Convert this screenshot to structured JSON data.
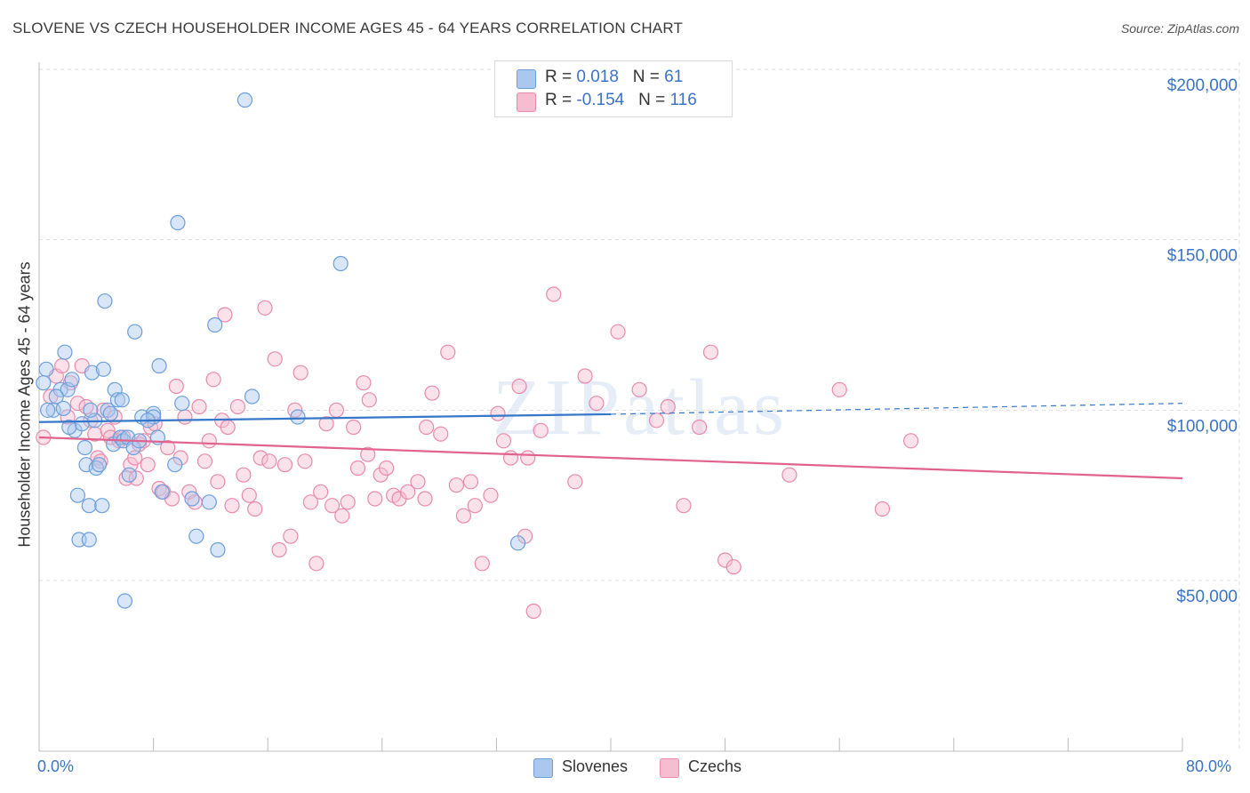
{
  "title": "SLOVENE VS CZECH HOUSEHOLDER INCOME AGES 45 - 64 YEARS CORRELATION CHART",
  "source": "Source: ZipAtlas.com",
  "watermark": "ZIPatlas",
  "legend": {
    "rows": [
      {
        "r_label": "R = ",
        "r_value": "0.018",
        "n_label": "N = ",
        "n_value": "61"
      },
      {
        "r_label": "R = ",
        "r_value": "-0.154",
        "n_label": "N = ",
        "n_value": "116"
      }
    ]
  },
  "bottom_legend": [
    "Slovenes",
    "Czechs"
  ],
  "colors": {
    "slovenes_fill": "#aac8ee",
    "slovenes_stroke": "#6c9edc",
    "slovenes_line": "#3577c9",
    "czechs_fill": "#f6bcd0",
    "czechs_stroke": "#e88aab",
    "czechs_line": "#e0628f",
    "axis_label": "#3b73c6",
    "grid": "#dddddd"
  },
  "chart_data": {
    "type": "scatter",
    "title": "SLOVENE VS CZECH HOUSEHOLDER INCOME AGES 45 - 64 YEARS CORRELATION CHART",
    "xlabel": "",
    "ylabel": "Householder Income Ages 45 - 64 years",
    "xlim": [
      0,
      80
    ],
    "ylim": [
      0,
      210000
    ],
    "x_tick_labels": [
      "0.0%",
      "80.0%"
    ],
    "y_ticks": [
      50000,
      100000,
      150000,
      200000
    ],
    "y_tick_labels": [
      "$50,000",
      "$100,000",
      "$150,000",
      "$200,000"
    ],
    "grid": "horizontal dashed",
    "series": [
      {
        "name": "Slovenes",
        "r": 0.018,
        "n": 61,
        "trend": {
          "x": [
            0,
            40
          ],
          "y": [
            96500,
            98800
          ],
          "dashed_to_x": 80,
          "dashed_to_y": 102000
        },
        "points": [
          [
            0.5,
            112000
          ],
          [
            1.0,
            100000
          ],
          [
            1.5,
            106000
          ],
          [
            1.7,
            100500
          ],
          [
            1.8,
            117000
          ],
          [
            2.0,
            106000
          ],
          [
            2.3,
            109000
          ],
          [
            2.5,
            94000
          ],
          [
            2.7,
            75000
          ],
          [
            2.8,
            62000
          ],
          [
            3.0,
            96000
          ],
          [
            3.2,
            89000
          ],
          [
            3.3,
            84000
          ],
          [
            3.5,
            72000
          ],
          [
            3.5,
            62000
          ],
          [
            3.7,
            111000
          ],
          [
            3.9,
            97000
          ],
          [
            4.0,
            83000
          ],
          [
            4.2,
            84000
          ],
          [
            4.4,
            72000
          ],
          [
            4.5,
            112000
          ],
          [
            4.6,
            132000
          ],
          [
            4.8,
            100000
          ],
          [
            5.0,
            99000
          ],
          [
            5.2,
            90000
          ],
          [
            5.3,
            106000
          ],
          [
            5.5,
            103000
          ],
          [
            5.7,
            92000
          ],
          [
            5.9,
            91000
          ],
          [
            6.0,
            44000
          ],
          [
            6.2,
            92000
          ],
          [
            6.3,
            81000
          ],
          [
            6.6,
            89000
          ],
          [
            6.7,
            123000
          ],
          [
            7.0,
            91000
          ],
          [
            7.2,
            98000
          ],
          [
            8.0,
            99000
          ],
          [
            8.0,
            98000
          ],
          [
            8.3,
            92000
          ],
          [
            8.4,
            113000
          ],
          [
            8.6,
            76000
          ],
          [
            9.5,
            84000
          ],
          [
            9.7,
            155000
          ],
          [
            10.0,
            102000
          ],
          [
            10.7,
            74000
          ],
          [
            11.0,
            63000
          ],
          [
            11.9,
            73000
          ],
          [
            12.3,
            125000
          ],
          [
            12.5,
            59000
          ],
          [
            14.4,
            191000
          ],
          [
            14.9,
            104000
          ],
          [
            18.1,
            98000
          ],
          [
            21.1,
            143000
          ],
          [
            33.5,
            61000
          ],
          [
            0.3,
            108000
          ],
          [
            0.6,
            100000
          ],
          [
            1.2,
            104000
          ],
          [
            2.1,
            95000
          ],
          [
            3.6,
            100000
          ],
          [
            5.8,
            103000
          ],
          [
            7.6,
            97000
          ]
        ]
      },
      {
        "name": "Czechs",
        "r": -0.154,
        "n": 116,
        "trend": {
          "x": [
            0,
            80
          ],
          "y": [
            92000,
            80000
          ]
        },
        "points": [
          [
            0.3,
            92000
          ],
          [
            0.8,
            104000
          ],
          [
            1.2,
            110000
          ],
          [
            1.6,
            113000
          ],
          [
            2.0,
            98000
          ],
          [
            2.2,
            108000
          ],
          [
            2.7,
            102000
          ],
          [
            3.0,
            113000
          ],
          [
            3.3,
            101000
          ],
          [
            3.6,
            97000
          ],
          [
            3.9,
            93000
          ],
          [
            4.1,
            86000
          ],
          [
            4.3,
            85000
          ],
          [
            4.5,
            100000
          ],
          [
            4.8,
            94000
          ],
          [
            5.0,
            92000
          ],
          [
            5.3,
            98000
          ],
          [
            5.6,
            91000
          ],
          [
            5.9,
            92000
          ],
          [
            6.1,
            80000
          ],
          [
            6.4,
            84000
          ],
          [
            6.7,
            86000
          ],
          [
            7.0,
            90000
          ],
          [
            7.3,
            91000
          ],
          [
            7.6,
            84000
          ],
          [
            7.8,
            95000
          ],
          [
            8.1,
            96000
          ],
          [
            8.4,
            77000
          ],
          [
            8.7,
            76000
          ],
          [
            9.0,
            89000
          ],
          [
            9.3,
            74000
          ],
          [
            9.6,
            107000
          ],
          [
            9.9,
            86000
          ],
          [
            10.2,
            98000
          ],
          [
            10.5,
            76000
          ],
          [
            10.9,
            73000
          ],
          [
            11.2,
            101000
          ],
          [
            11.6,
            85000
          ],
          [
            11.9,
            91000
          ],
          [
            12.2,
            109000
          ],
          [
            12.5,
            79000
          ],
          [
            12.8,
            97000
          ],
          [
            13.2,
            95000
          ],
          [
            13.5,
            72000
          ],
          [
            13.9,
            101000
          ],
          [
            14.3,
            81000
          ],
          [
            14.7,
            75000
          ],
          [
            15.1,
            71000
          ],
          [
            15.5,
            86000
          ],
          [
            15.8,
            130000
          ],
          [
            16.1,
            85000
          ],
          [
            16.5,
            115000
          ],
          [
            16.8,
            59000
          ],
          [
            17.2,
            84000
          ],
          [
            17.6,
            63000
          ],
          [
            17.9,
            100000
          ],
          [
            18.3,
            111000
          ],
          [
            18.6,
            85000
          ],
          [
            19.0,
            73000
          ],
          [
            19.4,
            55000
          ],
          [
            19.7,
            76000
          ],
          [
            20.1,
            96000
          ],
          [
            20.5,
            72000
          ],
          [
            20.8,
            100000
          ],
          [
            21.2,
            69000
          ],
          [
            21.6,
            73000
          ],
          [
            22.0,
            95000
          ],
          [
            22.3,
            83000
          ],
          [
            22.7,
            108000
          ],
          [
            23.1,
            103000
          ],
          [
            23.5,
            74000
          ],
          [
            23.9,
            81000
          ],
          [
            24.3,
            83000
          ],
          [
            24.8,
            75000
          ],
          [
            25.2,
            74000
          ],
          [
            25.8,
            76000
          ],
          [
            26.5,
            79000
          ],
          [
            27.1,
            95000
          ],
          [
            27.5,
            105000
          ],
          [
            28.1,
            93000
          ],
          [
            28.6,
            117000
          ],
          [
            29.2,
            78000
          ],
          [
            29.7,
            69000
          ],
          [
            30.2,
            79000
          ],
          [
            30.5,
            72000
          ],
          [
            31.0,
            55000
          ],
          [
            31.6,
            75000
          ],
          [
            32.1,
            99000
          ],
          [
            32.5,
            91000
          ],
          [
            33.0,
            86000
          ],
          [
            33.6,
            107000
          ],
          [
            34.2,
            86000
          ],
          [
            34.6,
            41000
          ],
          [
            35.1,
            94000
          ],
          [
            36.0,
            134000
          ],
          [
            37.5,
            79000
          ],
          [
            38.2,
            110000
          ],
          [
            39.0,
            102000
          ],
          [
            40.5,
            123000
          ],
          [
            42.0,
            106000
          ],
          [
            43.2,
            97000
          ],
          [
            44.0,
            101000
          ],
          [
            45.1,
            72000
          ],
          [
            46.2,
            95000
          ],
          [
            47.0,
            117000
          ],
          [
            48.0,
            56000
          ],
          [
            48.6,
            54000
          ],
          [
            52.5,
            81000
          ],
          [
            56.0,
            106000
          ],
          [
            59.0,
            71000
          ],
          [
            61.0,
            91000
          ],
          [
            27.0,
            74000
          ],
          [
            13.0,
            128000
          ],
          [
            6.8,
            80000
          ],
          [
            34.0,
            63000
          ],
          [
            23.0,
            87000
          ]
        ]
      }
    ]
  }
}
